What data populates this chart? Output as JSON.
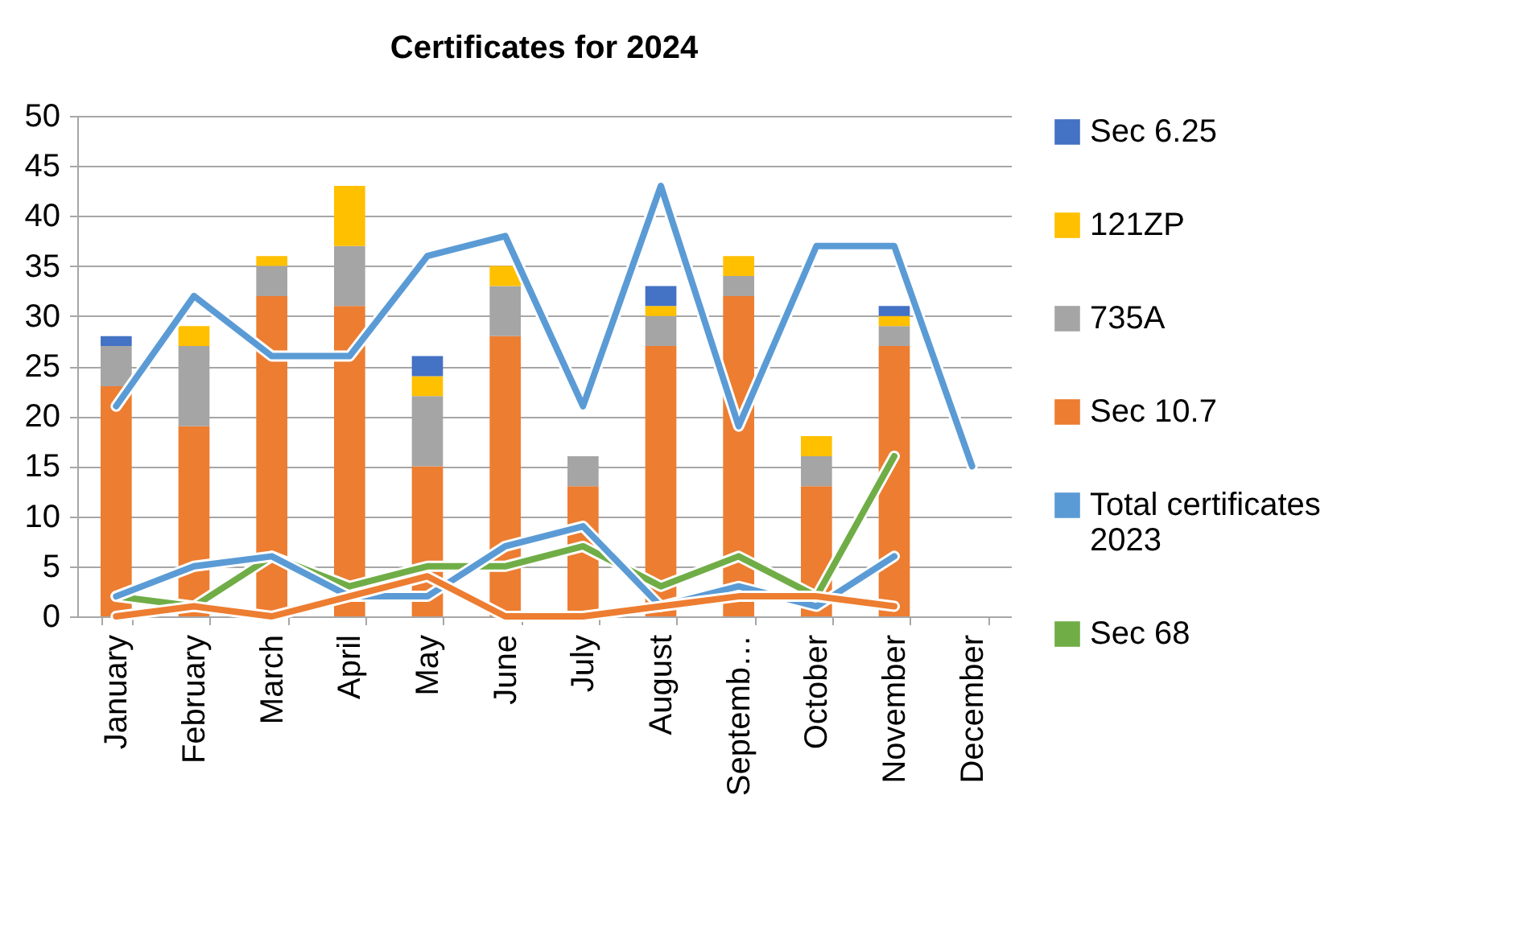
{
  "chart_data": {
    "type": "bar",
    "title": "Certificates for 2024",
    "stacked": true,
    "grid": "y",
    "legend": "right",
    "ylim": [
      0,
      50
    ],
    "yticks": [
      0,
      5,
      10,
      15,
      20,
      25,
      30,
      35,
      40,
      45,
      50
    ],
    "categories": [
      "January",
      "February",
      "March",
      "April",
      "May",
      "June",
      "July",
      "August",
      "Septemb…",
      "October",
      "November",
      "December"
    ],
    "series": [
      {
        "name": "Sec 10.7",
        "color": "#ed7d31",
        "values": [
          23,
          19,
          32,
          31,
          15,
          28,
          13,
          27,
          32,
          13,
          27,
          null
        ]
      },
      {
        "name": "735A",
        "color": "#a5a5a5",
        "values": [
          4,
          8,
          3,
          6,
          7,
          5,
          3,
          3,
          2,
          3,
          2,
          null
        ]
      },
      {
        "name": "121ZP",
        "color": "#ffc000",
        "values": [
          null,
          2,
          1,
          6,
          2,
          2,
          null,
          1,
          2,
          2,
          1,
          null
        ]
      },
      {
        "name": "Sec 6.25",
        "color": "#4472c4",
        "values": [
          1,
          null,
          null,
          null,
          2,
          null,
          null,
          2,
          null,
          null,
          1,
          null
        ]
      },
      {
        "name": "Total certificates 2023",
        "type": "line",
        "color": "#5b9bd5",
        "values": [
          21,
          32,
          26,
          26,
          36,
          38,
          21,
          43,
          19,
          37,
          37,
          15
        ]
      },
      {
        "name": "Sec 68",
        "type": "line",
        "color": "#70ad47",
        "values": [
          2,
          1,
          6,
          3,
          5,
          5,
          7,
          3,
          6,
          2,
          16,
          null
        ]
      },
      {
        "type": "line",
        "color": "#5b9bd5",
        "values": [
          2,
          5,
          6,
          2,
          2,
          7,
          9,
          1,
          3,
          1,
          6,
          null
        ]
      },
      {
        "type": "line",
        "color": "#ed7d31",
        "values": [
          0,
          1,
          0,
          2,
          4,
          0,
          0,
          1,
          2,
          2,
          1,
          null
        ]
      }
    ]
  }
}
